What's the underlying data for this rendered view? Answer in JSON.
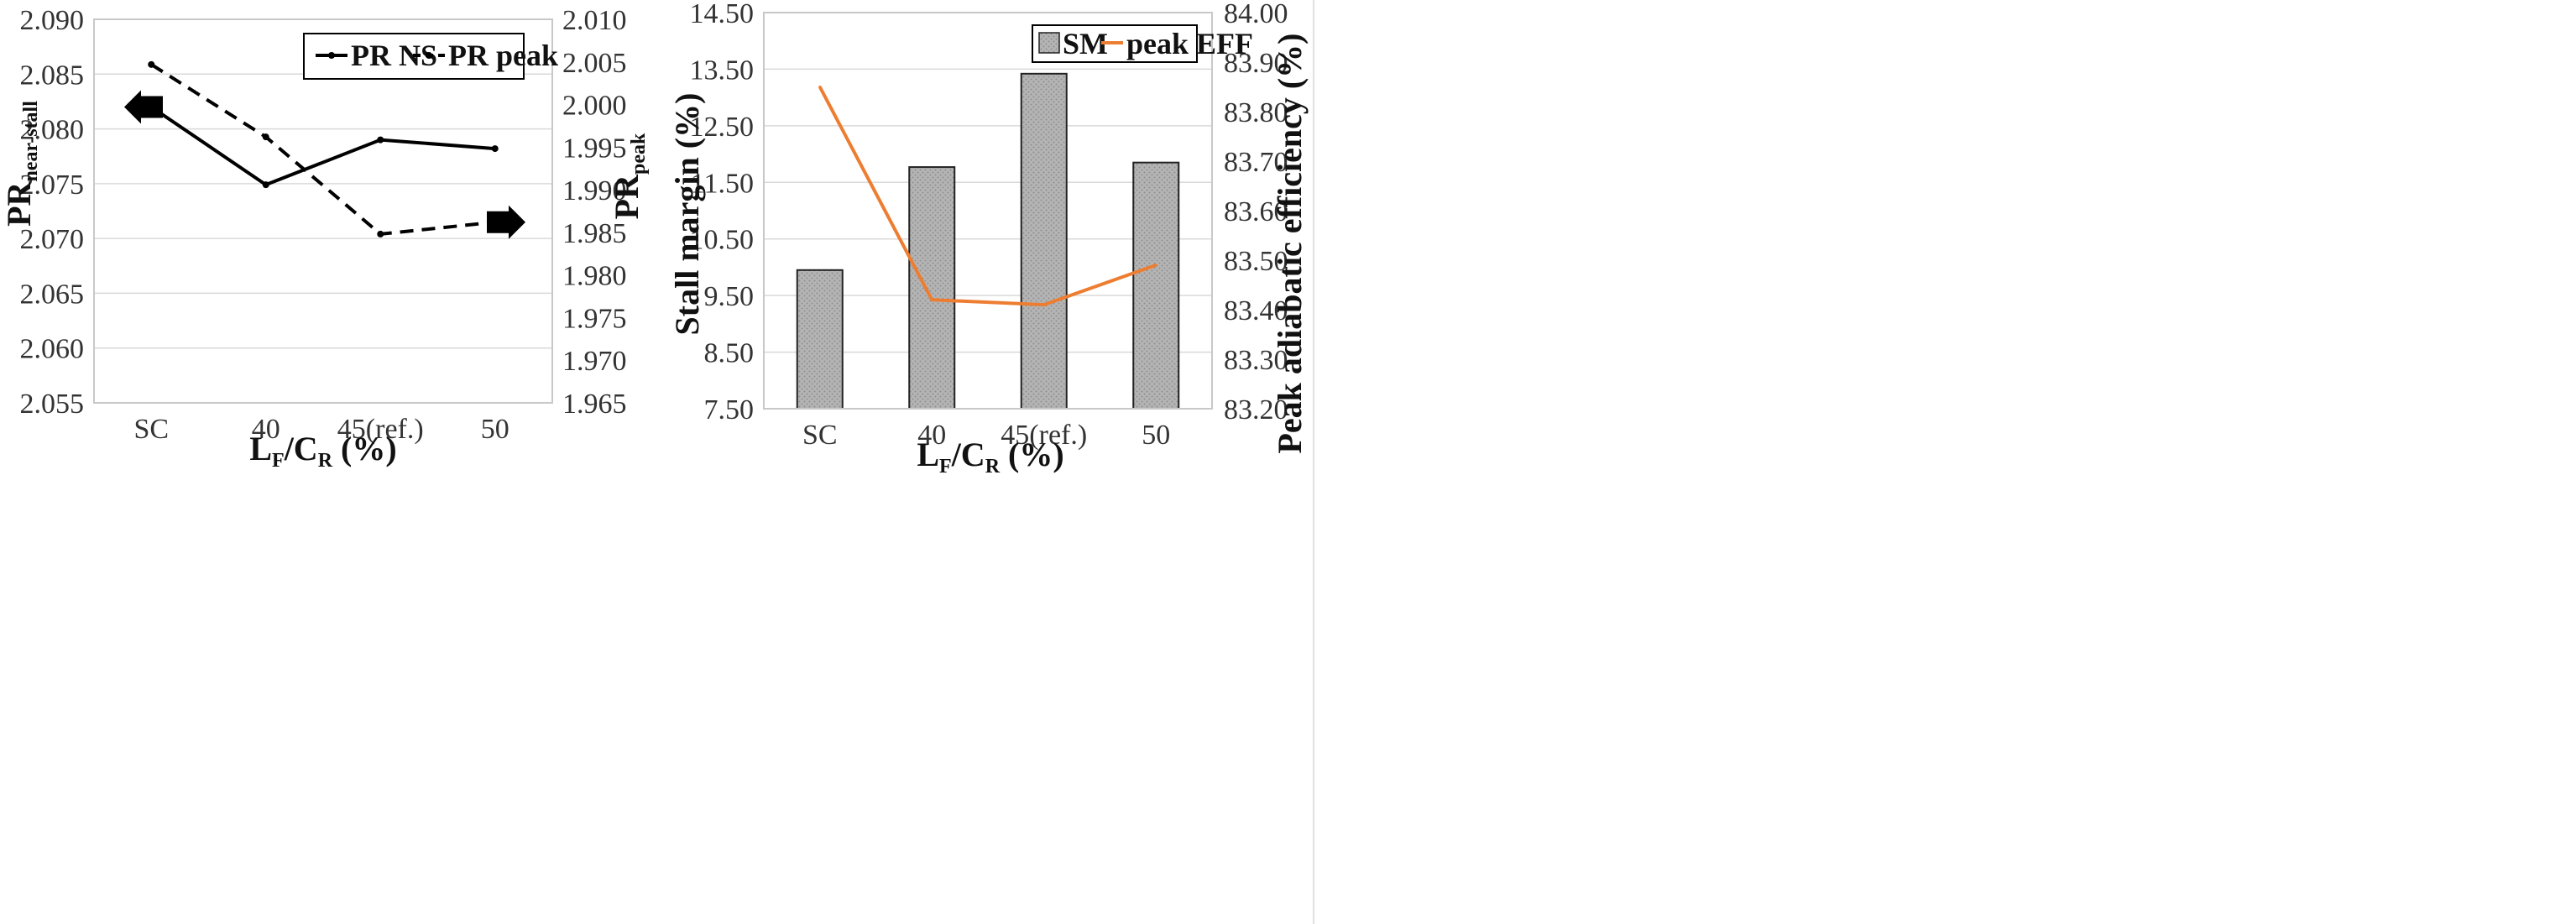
{
  "chart_data": [
    {
      "id": "left",
      "type": "line",
      "categories": [
        "SC",
        "40",
        "45(ref.)",
        "50"
      ],
      "xlabel": {
        "main": "L",
        "sub1": "F",
        "sep": "/C",
        "sub2": "R",
        "tail": " (%)"
      },
      "ylabel_left": {
        "main": "PR",
        "sub": "near-stall"
      },
      "ylabel_right": {
        "main": "PR",
        "sub": "peak"
      },
      "ylim_left": [
        2.055,
        2.09
      ],
      "yticks_left": [
        "2.055",
        "2.060",
        "2.065",
        "2.070",
        "2.075",
        "2.080",
        "2.085",
        "2.090"
      ],
      "ylim_right": [
        1.965,
        2.01
      ],
      "yticks_right": [
        "1.965",
        "1.970",
        "1.975",
        "1.980",
        "1.985",
        "1.990",
        "1.995",
        "2.000",
        "2.005",
        "2.010"
      ],
      "grid": true,
      "legend_position": "top-right",
      "series": [
        {
          "name": "PR NS",
          "axis": "left",
          "style": "solid",
          "color": "#000000",
          "values": [
            2.082,
            2.0749,
            2.079,
            2.0782
          ]
        },
        {
          "name": "PR peak",
          "axis": "right",
          "style": "dashed",
          "color": "#000000",
          "values": [
            2.0047,
            1.9962,
            1.9848,
            1.9862
          ]
        }
      ]
    },
    {
      "id": "right",
      "type": "bar",
      "categories": [
        "SC",
        "40",
        "45(ref.)",
        "50"
      ],
      "xlabel": {
        "main": "L",
        "sub1": "F",
        "sep": "/C",
        "sub2": "R",
        "tail": " (%)"
      },
      "ylabel_left": "Stall margin  (%)",
      "ylabel_right": "Peak adiabatic efficiency  (%)",
      "ylim_left": [
        7.5,
        14.5
      ],
      "yticks_left": [
        "7.50",
        "8.50",
        "9.50",
        "10.50",
        "11.50",
        "12.50",
        "13.50",
        "14.50"
      ],
      "ylim_right": [
        83.2,
        84.0
      ],
      "yticks_right": [
        "83.20",
        "83.30",
        "83.40",
        "83.50",
        "83.60",
        "83.70",
        "83.80",
        "83.90",
        "84.00"
      ],
      "grid": true,
      "legend_position": "top-right",
      "series": [
        {
          "name": "SM",
          "kind": "bar",
          "axis": "left",
          "color": "#a9a9a9",
          "values": [
            9.95,
            11.77,
            13.42,
            11.85
          ]
        },
        {
          "name": "peak EFF",
          "kind": "line",
          "axis": "right",
          "color": "#ed7d31",
          "values": [
            83.85,
            83.42,
            83.41,
            83.49
          ]
        }
      ]
    }
  ]
}
